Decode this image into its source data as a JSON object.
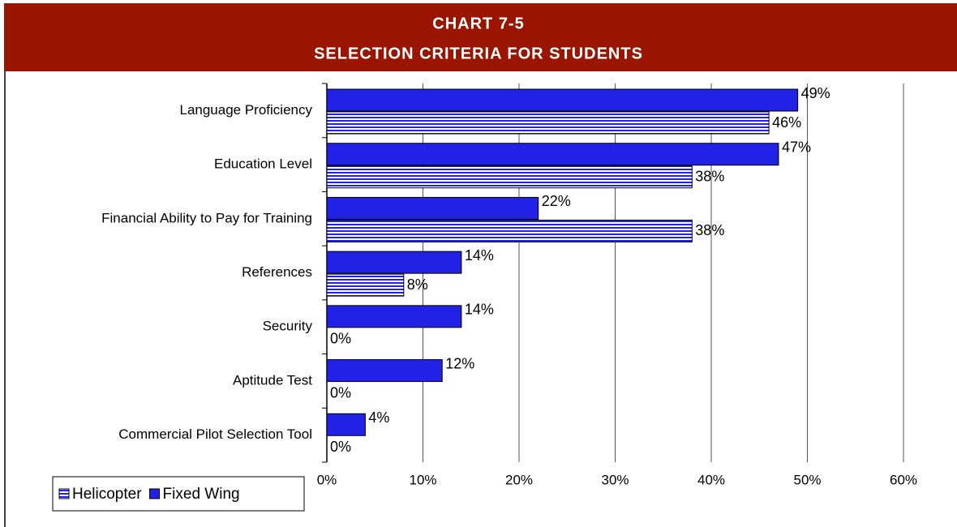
{
  "chart_data": {
    "type": "bar",
    "orientation": "horizontal",
    "title": "CHART 7-5",
    "subtitle": "SELECTION CRITERIA FOR STUDENTS",
    "categories": [
      "Language Proficiency",
      "Education Level",
      "Financial Ability to Pay for Training",
      "References",
      "Security",
      "Aptitude Test",
      "Commercial Pilot Selection Tool"
    ],
    "series": [
      {
        "name": "Helicopter",
        "color": "#2222e6",
        "pattern": "horizontal-stripes",
        "values": [
          46,
          38,
          38,
          8,
          0,
          0,
          0
        ],
        "value_labels": [
          "46%",
          "38%",
          "38%",
          "8%",
          "0%",
          "0%",
          "0%"
        ]
      },
      {
        "name": "Fixed Wing",
        "color": "#2222e6",
        "values": [
          49,
          47,
          22,
          14,
          14,
          12,
          4
        ],
        "value_labels": [
          "49%",
          "47%",
          "22%",
          "14%",
          "14%",
          "12%",
          "4%"
        ]
      }
    ],
    "xlim": [
      0,
      60
    ],
    "xticks": [
      {
        "value": 0,
        "label": "0%"
      },
      {
        "value": 10,
        "label": "10%"
      },
      {
        "value": 20,
        "label": "20%"
      },
      {
        "value": 30,
        "label": "30%"
      },
      {
        "value": 40,
        "label": "40%"
      },
      {
        "value": 50,
        "label": "50%"
      },
      {
        "value": 60,
        "label": "60%"
      }
    ],
    "grid": true,
    "legend": "bottom-left"
  }
}
